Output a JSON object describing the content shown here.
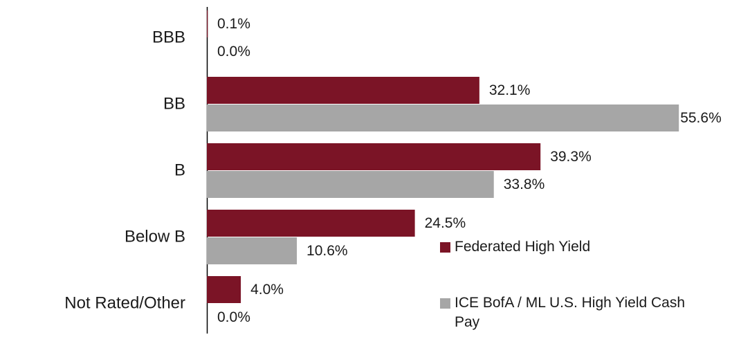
{
  "chart_data": {
    "type": "bar",
    "orientation": "horizontal",
    "categories": [
      "BBB",
      "BB",
      "B",
      "Below B",
      "Not Rated/Other"
    ],
    "series": [
      {
        "name": "Federated High Yield",
        "color": "#7b1426",
        "values": [
          0.1,
          32.1,
          39.3,
          24.5,
          4.0
        ],
        "value_labels": [
          "0.1%",
          "32.1%",
          "39.3%",
          "24.5%",
          "4.0%"
        ]
      },
      {
        "name": "ICE BofA / ML U.S. High Yield Cash Pay",
        "color": "#a6a6a6",
        "values": [
          0.0,
          55.6,
          33.8,
          10.6,
          0.0
        ],
        "value_labels": [
          "0.0%",
          "55.6%",
          "33.8%",
          "10.6%",
          "0.0%"
        ]
      }
    ]
  }
}
